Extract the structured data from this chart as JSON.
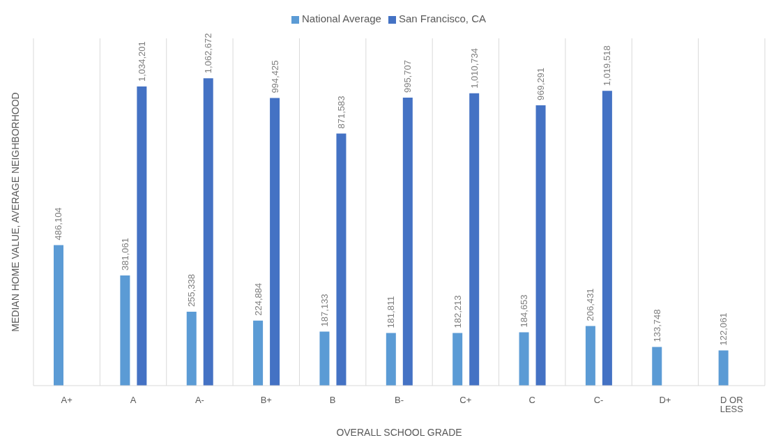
{
  "chart_data": {
    "type": "bar",
    "xlabel": "OVERALL SCHOOL GRADE",
    "ylabel": "MEDIAN HOME VALUE, AVERAGE NEIGHBORHOOD",
    "categories": [
      "A+",
      "A",
      "A-",
      "B+",
      "B",
      "B-",
      "C+",
      "C",
      "C-",
      "D+",
      "D OR LESS"
    ],
    "series": [
      {
        "name": "National Average",
        "color": "#5b9bd5",
        "values": [
          486104,
          381061,
          255338,
          224884,
          187133,
          181811,
          182213,
          184653,
          206431,
          133748,
          122061
        ],
        "value_labels": [
          "486,104",
          "381,061",
          "255,338",
          "224,884",
          "187,133",
          "181,811",
          "182,213",
          "184,653",
          "206,431",
          "133,748",
          "122,061"
        ]
      },
      {
        "name": "San Francisco, CA",
        "color": "#4472c4",
        "values": [
          null,
          1034201,
          1062672,
          994425,
          871583,
          995707,
          1010734,
          969291,
          1019518,
          null,
          null
        ],
        "value_labels": [
          null,
          "1,034,201",
          "1,062,672",
          "994,425",
          "871,583",
          "995,707",
          "1,010,734",
          "969,291",
          "1,019,518",
          null,
          null
        ]
      }
    ],
    "grid": "x",
    "legend": "top"
  }
}
